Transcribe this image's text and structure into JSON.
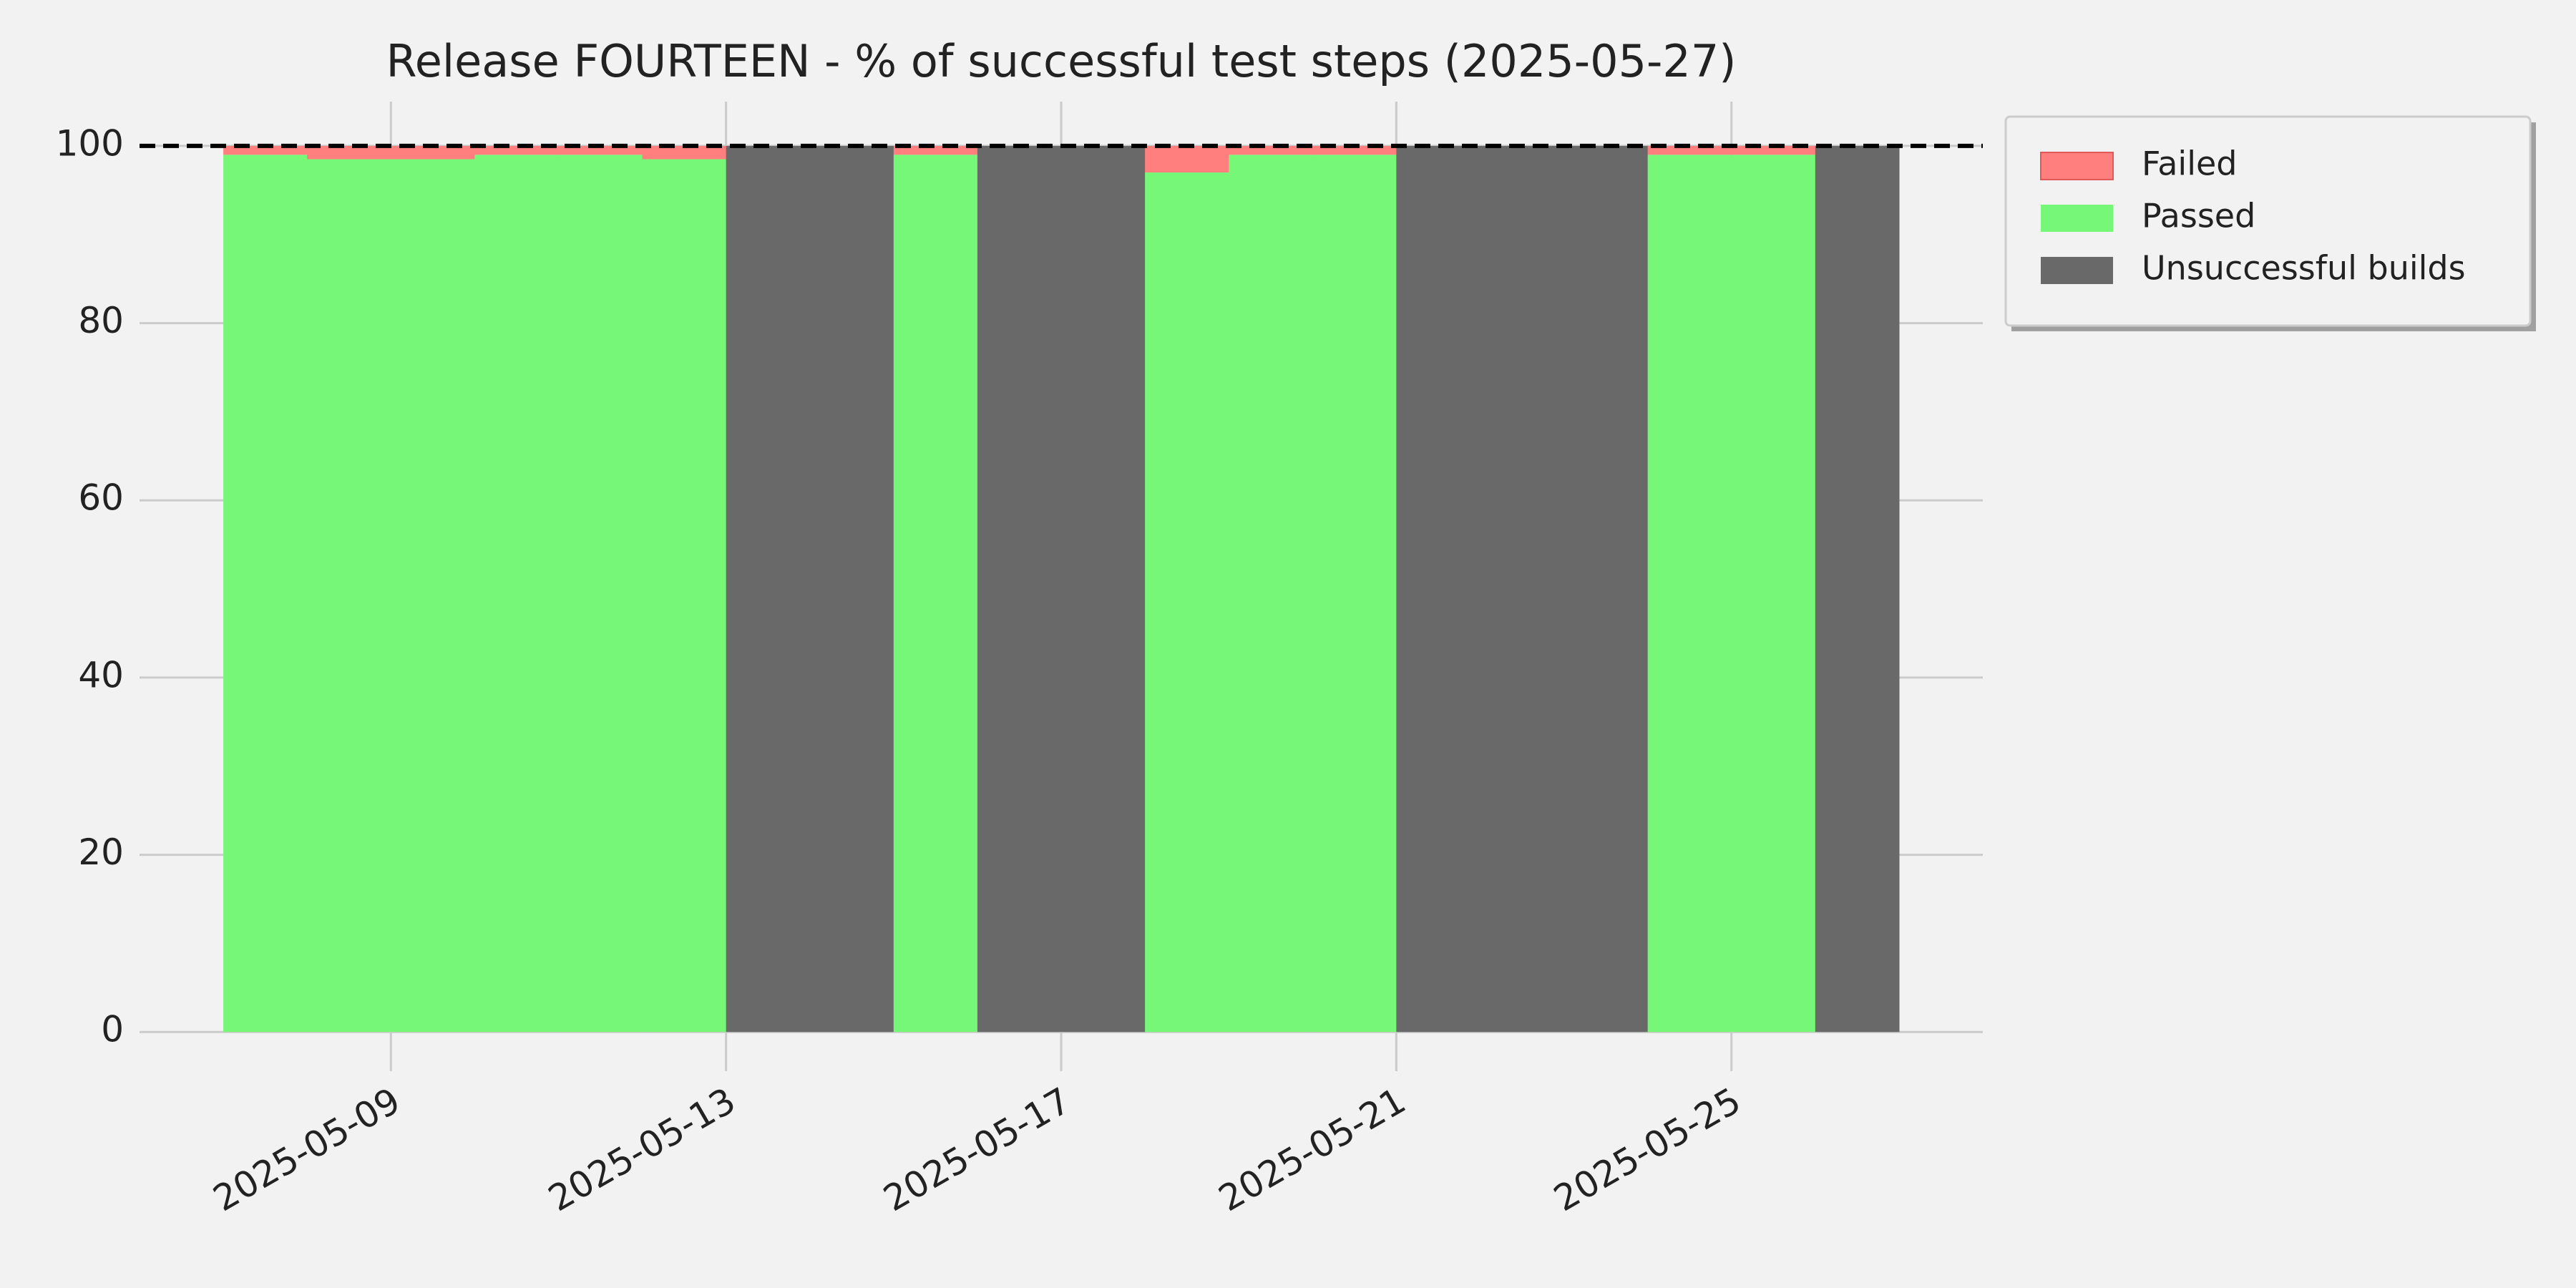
{
  "chart_data": {
    "type": "stacked_step_area",
    "title": "Release FOURTEEN - % of successful test steps (2025-05-27)",
    "x": [
      "2025-05-07",
      "2025-05-08",
      "2025-05-09",
      "2025-05-10",
      "2025-05-11",
      "2025-05-12",
      "2025-05-13",
      "2025-05-14",
      "2025-05-15",
      "2025-05-16",
      "2025-05-17",
      "2025-05-18",
      "2025-05-19",
      "2025-05-20",
      "2025-05-21",
      "2025-05-22",
      "2025-05-23",
      "2025-05-24",
      "2025-05-25",
      "2025-05-26"
    ],
    "series": [
      {
        "name": "Failed",
        "color": "#ff7f7f",
        "values": [
          1,
          1.5,
          1.5,
          1,
          1,
          1.5,
          0,
          0,
          1,
          0,
          0,
          3,
          1,
          1,
          0,
          0,
          0,
          1,
          1,
          0
        ]
      },
      {
        "name": "Passed",
        "color": "#77f777",
        "values": [
          99,
          98.5,
          98.5,
          99,
          99,
          98.5,
          0,
          0,
          99,
          0,
          0,
          97,
          99,
          99,
          0,
          0,
          0,
          99,
          99,
          0
        ]
      },
      {
        "name": "Unsuccessful builds",
        "color": "#696969",
        "values": [
          0,
          0,
          0,
          0,
          0,
          0,
          100,
          100,
          0,
          100,
          100,
          0,
          0,
          0,
          100,
          100,
          100,
          0,
          0,
          100
        ]
      }
    ],
    "xlim": [
      "2025-05-06",
      "2025-05-28"
    ],
    "xticks": [
      "2025-05-09",
      "2025-05-13",
      "2025-05-17",
      "2025-05-21",
      "2025-05-25"
    ],
    "ylim": [
      -2,
      105
    ],
    "yticks": [
      0,
      20,
      40,
      60,
      80,
      100
    ],
    "reference_line": 100,
    "grid": true,
    "legend": "outside upper right"
  }
}
